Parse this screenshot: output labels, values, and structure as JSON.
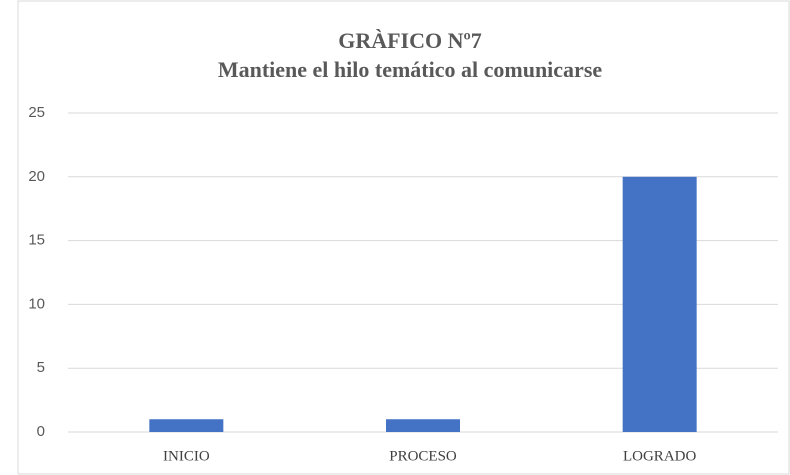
{
  "chart_data": {
    "type": "bar",
    "title": "GRÀFICO Nº7",
    "subtitle": "Mantiene el hilo temático al comunicarse",
    "categories": [
      "INICIO",
      "PROCESO",
      "LOGRADO"
    ],
    "values": [
      1,
      1,
      20
    ],
    "color": "#4472c4",
    "ylim": [
      0,
      25
    ],
    "yticks": [
      0,
      5,
      10,
      15,
      20,
      25
    ],
    "grid": true
  }
}
